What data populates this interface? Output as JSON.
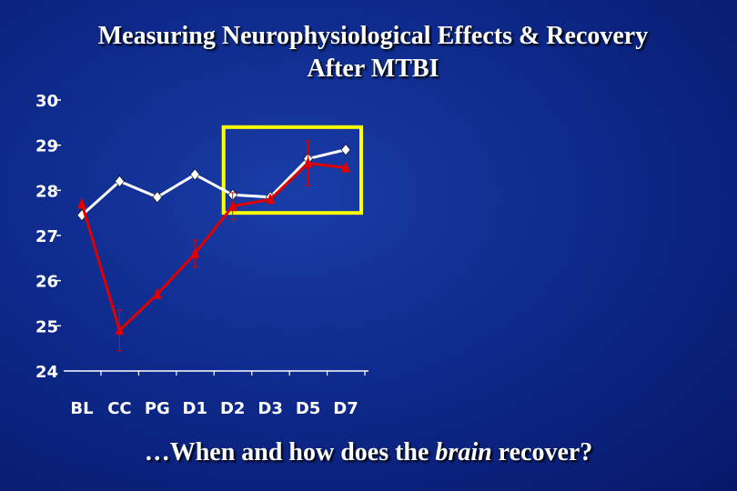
{
  "slide": {
    "title_line1": "Measuring Neurophysiological Effects & Recovery",
    "title_line2": "After MTBI",
    "caption_before": "…When and how does the ",
    "caption_emphasis": "brain",
    "caption_after": " recover?"
  },
  "chart_data": {
    "type": "line",
    "title": "",
    "xlabel": "",
    "ylabel": "",
    "categories": [
      "BL",
      "CC",
      "PG",
      "D1",
      "D2",
      "D3",
      "D5",
      "D7"
    ],
    "yticks": [
      24,
      25,
      26,
      27,
      28,
      29,
      30
    ],
    "ylim": [
      24,
      30
    ],
    "grid": false,
    "series": [
      {
        "color": "#ffffff",
        "marker": "diamond",
        "values": [
          27.45,
          28.2,
          27.85,
          28.35,
          27.9,
          27.85,
          28.7,
          28.9
        ]
      },
      {
        "color": "#e00000",
        "marker": "triangle",
        "values": [
          27.7,
          24.9,
          25.7,
          26.6,
          27.65,
          27.8,
          28.6,
          28.5
        ],
        "error_bars": [
          0.0,
          0.45,
          0.0,
          0.3,
          0.3,
          0.0,
          0.5,
          0.0
        ]
      }
    ],
    "annotations": [
      {
        "type": "highlight-box",
        "color": "#ffff00",
        "from_category": "D2",
        "to_category": "D7",
        "ymin": 27.5,
        "ymax": 29.4
      }
    ]
  }
}
